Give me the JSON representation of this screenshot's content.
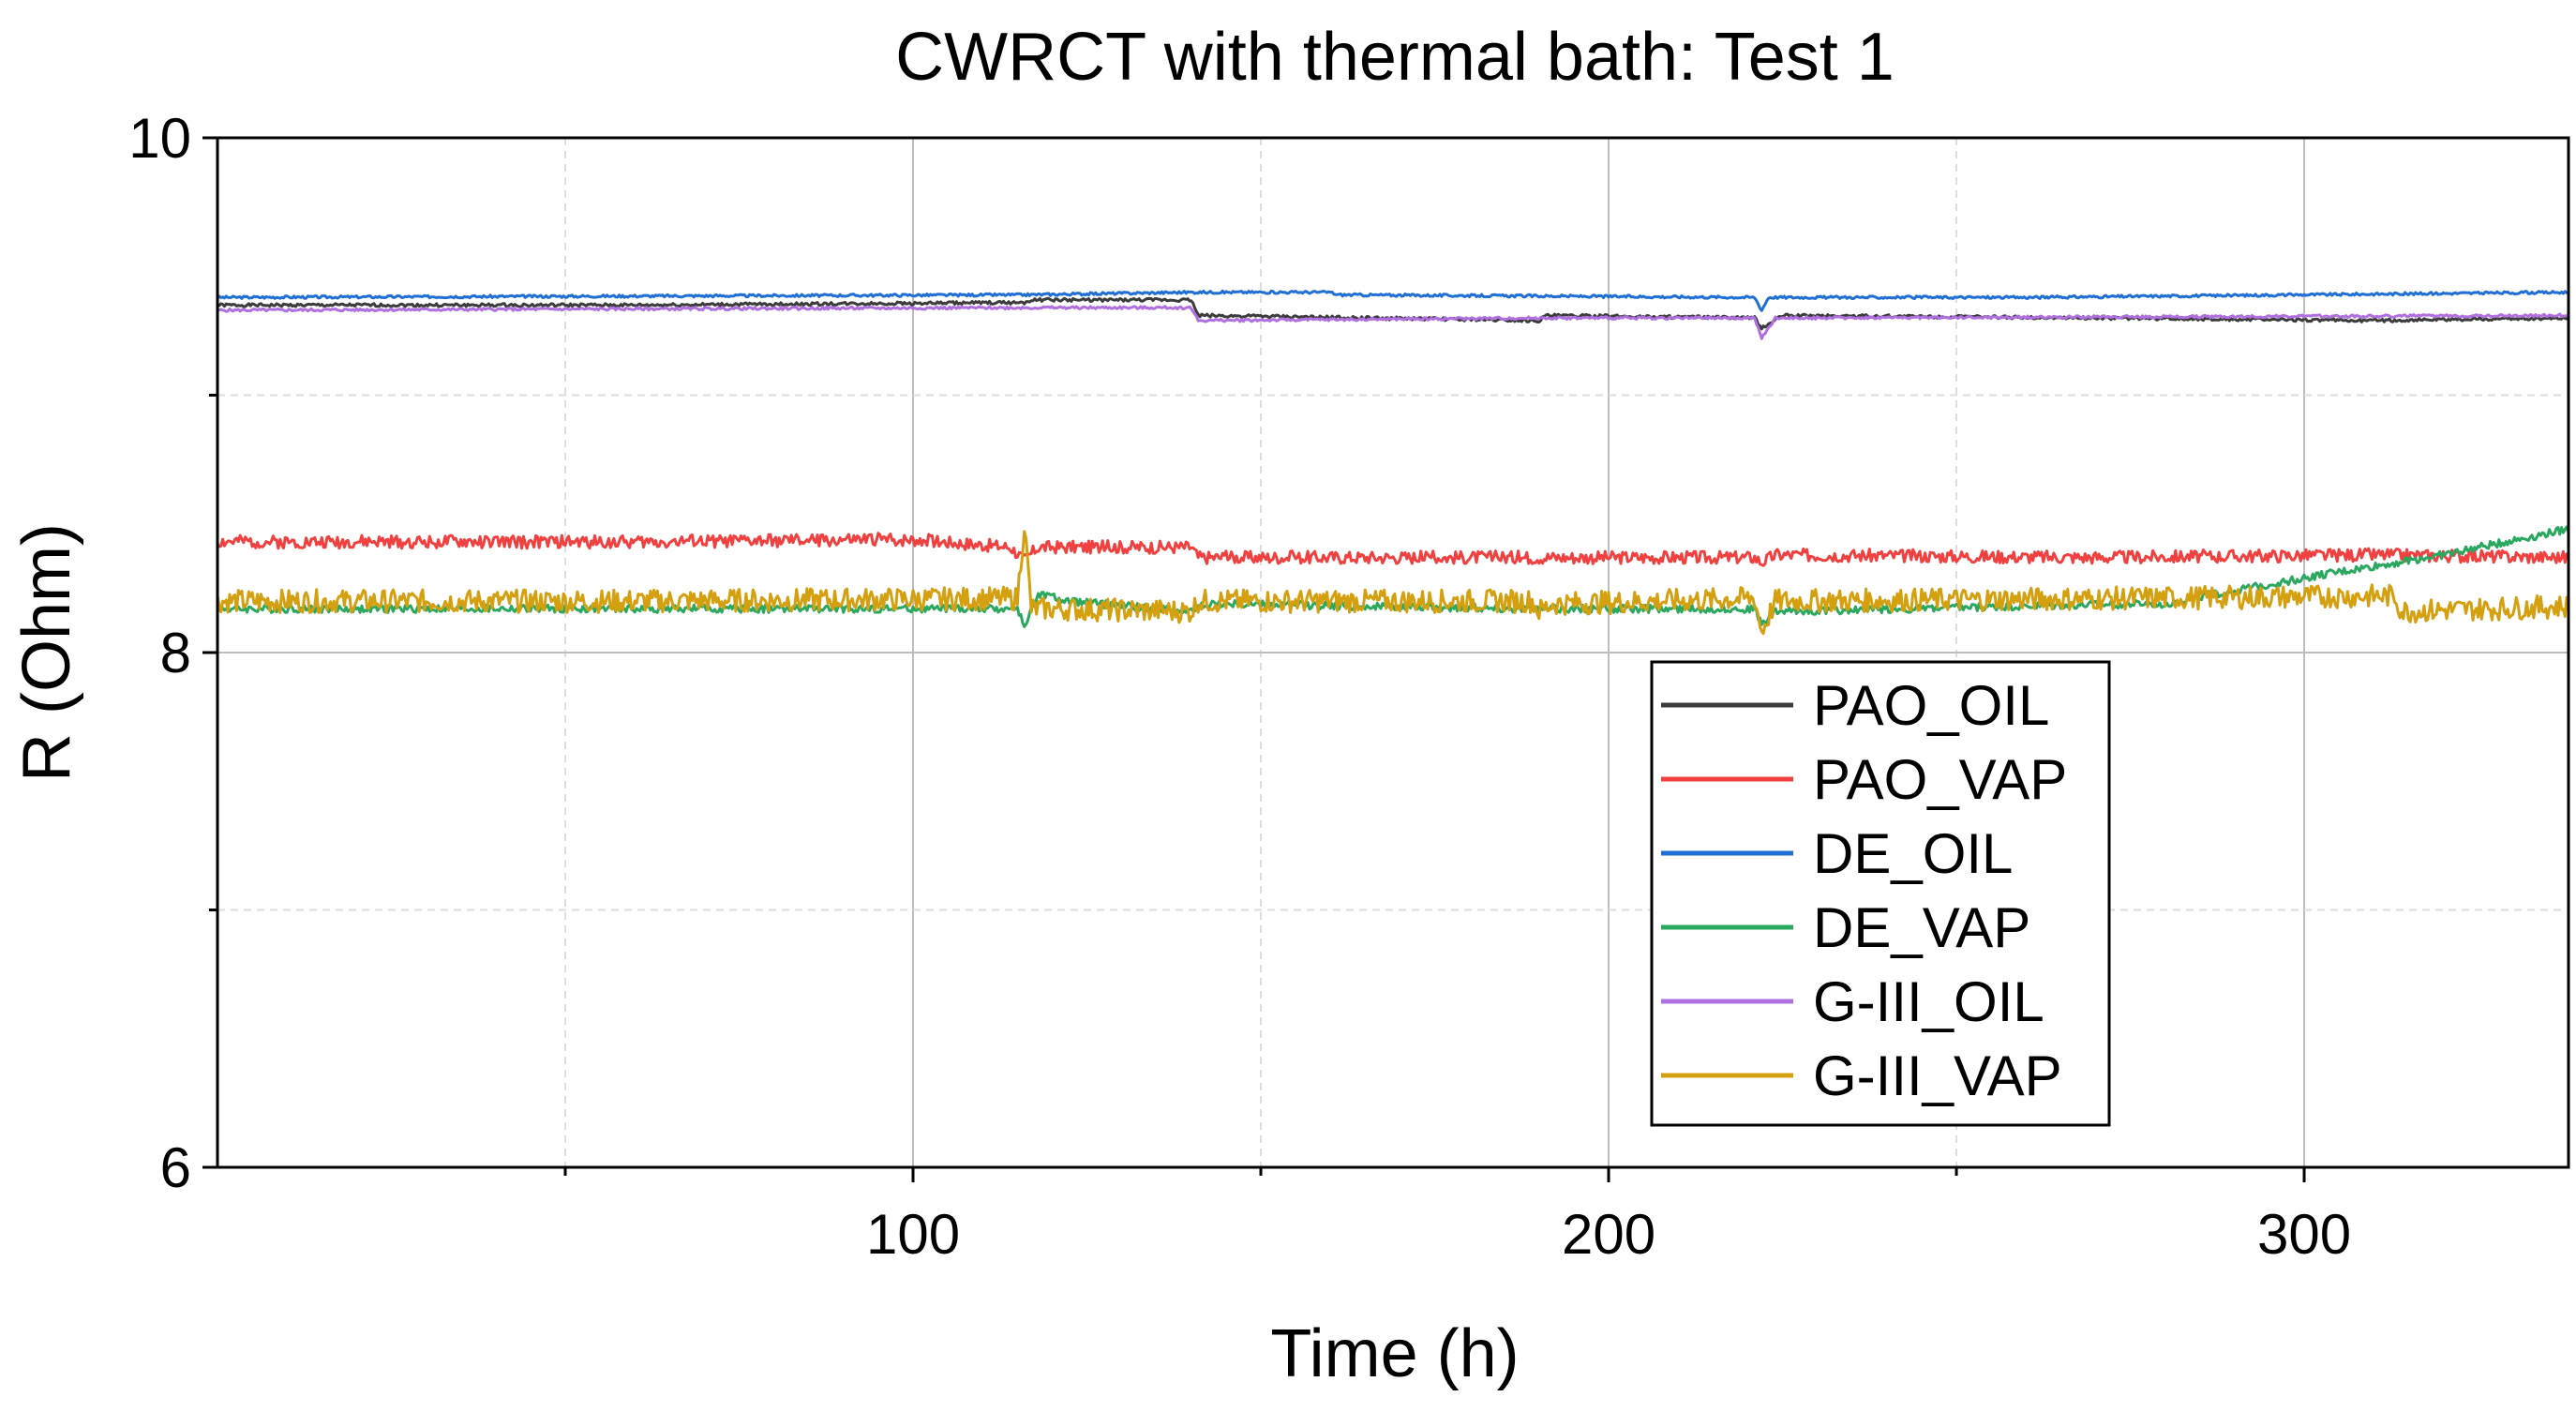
{
  "chart_data": {
    "type": "line",
    "title": "CWRCT with thermal bath: Test 1",
    "xlabel": "Time (h)",
    "ylabel": "R (Ohm)",
    "xlim": [
      0,
      338
    ],
    "ylim": [
      6,
      10
    ],
    "x_ticks": [
      100,
      200,
      300
    ],
    "x_minor_ticks": [
      50,
      150,
      250
    ],
    "y_ticks": [
      6,
      8,
      10
    ],
    "y_minor_ticks": [
      7,
      9
    ],
    "grid": true,
    "legend_position": "center-right",
    "series": [
      {
        "name": "PAO_OIL",
        "color": "#3c3c3c",
        "noise": 0.006,
        "points": [
          [
            0,
            9.35
          ],
          [
            60,
            9.35
          ],
          [
            116,
            9.36
          ],
          [
            117,
            9.37
          ],
          [
            140,
            9.37
          ],
          [
            141,
            9.31
          ],
          [
            190,
            9.29
          ],
          [
            191,
            9.31
          ],
          [
            221,
            9.3
          ],
          [
            222,
            9.26
          ],
          [
            225,
            9.31
          ],
          [
            270,
            9.3
          ],
          [
            310,
            9.29
          ],
          [
            338,
            9.3
          ]
        ]
      },
      {
        "name": "PAO_VAP",
        "color": "#f04040",
        "noise": 0.025,
        "points": [
          [
            0,
            8.43
          ],
          [
            60,
            8.43
          ],
          [
            100,
            8.44
          ],
          [
            114,
            8.41
          ],
          [
            116,
            8.36
          ],
          [
            118,
            8.41
          ],
          [
            140,
            8.41
          ],
          [
            141,
            8.37
          ],
          [
            221,
            8.37
          ],
          [
            222,
            8.35
          ],
          [
            224,
            8.38
          ],
          [
            270,
            8.37
          ],
          [
            310,
            8.38
          ],
          [
            338,
            8.37
          ]
        ]
      },
      {
        "name": "DE_OIL",
        "color": "#1f6fd4",
        "noise": 0.005,
        "points": [
          [
            0,
            9.38
          ],
          [
            116,
            9.39
          ],
          [
            140,
            9.4
          ],
          [
            160,
            9.4
          ],
          [
            161,
            9.39
          ],
          [
            221,
            9.38
          ],
          [
            222,
            9.33
          ],
          [
            223,
            9.38
          ],
          [
            260,
            9.38
          ],
          [
            338,
            9.4
          ]
        ]
      },
      {
        "name": "DE_VAP",
        "color": "#2aa860",
        "noise": 0.015,
        "points": [
          [
            0,
            8.17
          ],
          [
            115,
            8.17
          ],
          [
            116,
            8.1
          ],
          [
            118,
            8.23
          ],
          [
            122,
            8.2
          ],
          [
            140,
            8.16
          ],
          [
            142,
            8.19
          ],
          [
            190,
            8.17
          ],
          [
            221,
            8.17
          ],
          [
            222,
            8.11
          ],
          [
            224,
            8.16
          ],
          [
            280,
            8.19
          ],
          [
            300,
            8.29
          ],
          [
            320,
            8.38
          ],
          [
            338,
            8.48
          ]
        ]
      },
      {
        "name": "G-III_OIL",
        "color": "#b070e0",
        "noise": 0.005,
        "points": [
          [
            0,
            9.33
          ],
          [
            116,
            9.34
          ],
          [
            140,
            9.34
          ],
          [
            141,
            9.29
          ],
          [
            190,
            9.3
          ],
          [
            221,
            9.3
          ],
          [
            222,
            9.22
          ],
          [
            224,
            9.3
          ],
          [
            338,
            9.31
          ]
        ]
      },
      {
        "name": "G-III_VAP",
        "color": "#d4a010",
        "noise": 0.045,
        "points": [
          [
            0,
            8.2
          ],
          [
            60,
            8.2
          ],
          [
            115,
            8.21
          ],
          [
            116,
            8.5
          ],
          [
            117,
            8.17
          ],
          [
            120,
            8.17
          ],
          [
            140,
            8.16
          ],
          [
            141,
            8.2
          ],
          [
            189,
            8.2
          ],
          [
            190,
            8.16
          ],
          [
            192,
            8.19
          ],
          [
            221,
            8.21
          ],
          [
            222,
            8.08
          ],
          [
            224,
            8.2
          ],
          [
            270,
            8.21
          ],
          [
            313,
            8.22
          ],
          [
            314,
            8.16
          ],
          [
            338,
            8.18
          ]
        ]
      }
    ]
  }
}
